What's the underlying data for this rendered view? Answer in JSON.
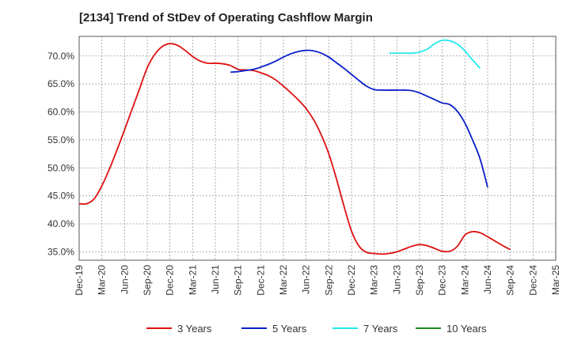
{
  "chart_data": {
    "type": "line",
    "title": "[2134]  Trend of StDev of Operating Cashflow Margin",
    "xlabel": "",
    "ylabel": "",
    "y_unit": "%",
    "ylim": [
      33.5,
      73.5
    ],
    "y_ticks": [
      "35.0%",
      "40.0%",
      "45.0%",
      "50.0%",
      "55.0%",
      "60.0%",
      "65.0%",
      "70.0%"
    ],
    "y_tick_values": [
      35,
      40,
      45,
      50,
      55,
      60,
      65,
      70
    ],
    "x_ticks": [
      "Dec-19",
      "Mar-20",
      "Jun-20",
      "Sep-20",
      "Dec-20",
      "Mar-21",
      "Jun-21",
      "Sep-21",
      "Dec-21",
      "Mar-22",
      "Jun-22",
      "Sep-22",
      "Dec-22",
      "Mar-23",
      "Jun-23",
      "Sep-23",
      "Dec-23",
      "Mar-24",
      "Jun-24",
      "Sep-24",
      "Dec-24",
      "Mar-25"
    ],
    "grid": true,
    "legend_position": "bottom",
    "series": [
      {
        "name": "3 Years",
        "color": "#dd1111",
        "x_start": "Dec-19",
        "values": [
          43.6,
          43.6,
          44.5,
          46.8,
          49.8,
          53.2,
          56.8,
          60.5,
          64.2,
          67.9,
          70.3,
          71.7,
          72.2,
          71.9,
          71.0,
          69.9,
          69.1,
          68.7,
          68.7,
          68.6,
          68.3,
          67.6,
          67.5,
          67.4,
          67.0,
          66.5,
          65.7,
          64.6,
          63.4,
          62.1,
          60.6,
          58.6,
          55.9,
          52.5,
          48.1,
          43.2,
          38.7,
          36.0,
          34.9,
          34.7,
          34.6,
          34.7,
          35.0,
          35.5,
          36.0,
          36.3,
          36.1,
          35.6,
          35.1,
          35.1,
          36.0,
          38.0,
          38.6,
          38.4,
          37.7,
          36.9,
          36.1,
          35.4
        ]
      },
      {
        "name": "5 Years",
        "color": "#0a1fc8",
        "x_start": "Dec-19",
        "values": [
          null,
          null,
          null,
          null,
          null,
          null,
          null,
          null,
          null,
          null,
          null,
          null,
          null,
          null,
          null,
          null,
          null,
          null,
          null,
          null,
          67.1,
          67.2,
          67.4,
          67.6,
          68.0,
          68.5,
          69.1,
          69.8,
          70.4,
          70.8,
          71.0,
          70.9,
          70.5,
          69.8,
          68.8,
          67.8,
          66.7,
          65.6,
          64.6,
          64.0,
          63.9,
          63.9,
          63.9,
          63.9,
          63.8,
          63.4,
          62.8,
          62.2,
          61.6,
          61.3,
          60.1,
          58.0,
          55.0,
          51.6,
          46.5
        ]
      },
      {
        "name": "7 Years",
        "color": "#22e8ee",
        "x_start": "Dec-19",
        "values": [
          null,
          null,
          null,
          null,
          null,
          null,
          null,
          null,
          null,
          null,
          null,
          null,
          null,
          null,
          null,
          null,
          null,
          null,
          null,
          null,
          null,
          null,
          null,
          null,
          null,
          null,
          null,
          null,
          null,
          null,
          null,
          null,
          null,
          null,
          null,
          null,
          null,
          null,
          null,
          null,
          null,
          70.5,
          70.5,
          70.5,
          70.5,
          70.7,
          71.2,
          72.2,
          72.8,
          72.7,
          72.1,
          70.9,
          69.3,
          67.8
        ]
      },
      {
        "name": "10 Years",
        "color": "#1a8c1a",
        "x_start": "Dec-19",
        "values": []
      }
    ]
  }
}
